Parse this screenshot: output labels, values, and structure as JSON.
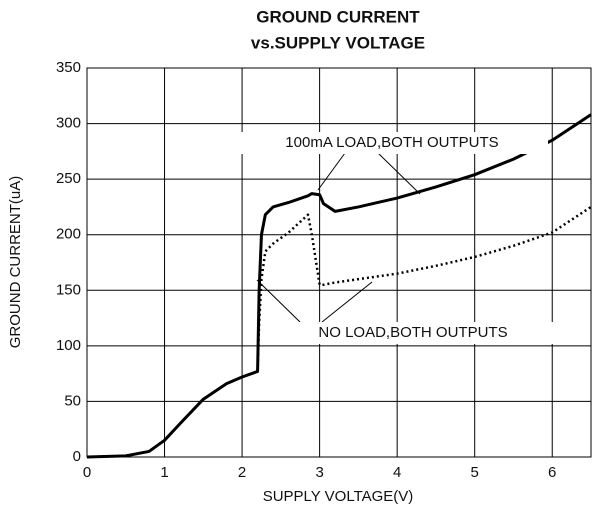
{
  "chart_data": {
    "type": "line",
    "title": [
      "GROUND CURRENT",
      "vs.SUPPLY VOLTAGE"
    ],
    "x_label": "SUPPLY VOLTAGE(V)",
    "y_label": "GROUND CURRENT(uA)",
    "annotations": [
      "100mA LOAD,BOTH OUTPUTS",
      "NO LOAD,BOTH OUTPUTS"
    ],
    "x": [
      0,
      0.5,
      0.8,
      1.0,
      1.2,
      1.5,
      1.8,
      2.0,
      2.2,
      2.22,
      2.25,
      2.3,
      2.4,
      2.6,
      2.85,
      2.9,
      3.0,
      3.05,
      3.2,
      3.5,
      4.0,
      4.5,
      5.0,
      5.5,
      6.0,
      6.5
    ],
    "series": [
      {
        "name": "100mA LOAD,BOTH OUTPUTS",
        "color": "#000000",
        "style": "solid",
        "values": [
          0,
          1,
          5,
          15,
          30,
          52,
          66,
          72,
          77,
          150,
          200,
          218,
          225,
          229,
          235,
          237,
          236,
          228,
          221,
          225,
          233,
          243,
          254,
          268,
          285,
          308
        ]
      },
      {
        "name": "NO LOAD,BOTH OUTPUTS",
        "color": "#000000",
        "style": "dotted",
        "values": [
          0,
          1,
          5,
          15,
          30,
          52,
          66,
          72,
          77,
          120,
          160,
          185,
          192,
          202,
          218,
          200,
          155,
          155,
          157,
          160,
          165,
          172,
          180,
          190,
          202,
          225
        ]
      }
    ],
    "xlim": [
      0,
      6.5
    ],
    "xticks": [
      0,
      1,
      2,
      3,
      4,
      5,
      6
    ],
    "ylim": [
      0,
      350
    ],
    "yticks": [
      0,
      50,
      100,
      150,
      200,
      250,
      300,
      350
    ],
    "grid": true
  }
}
